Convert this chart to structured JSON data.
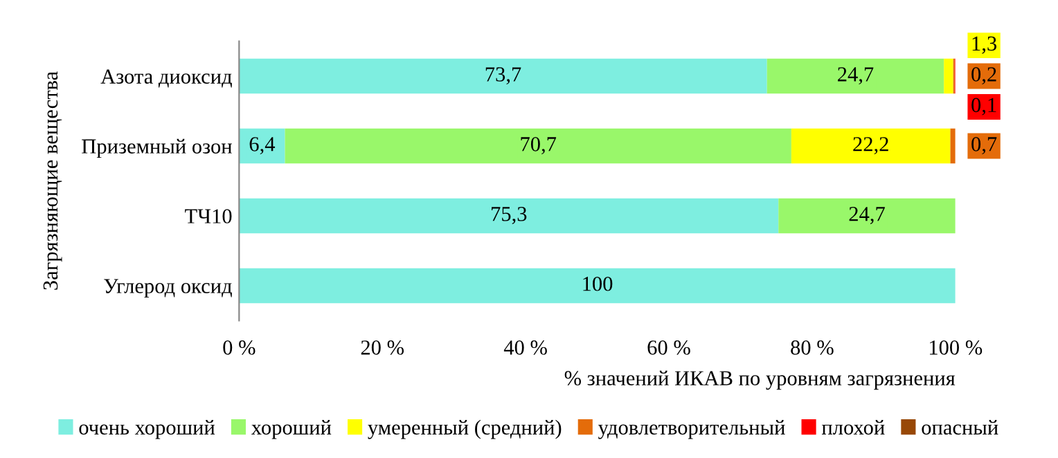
{
  "chart_data": {
    "type": "bar",
    "orientation": "horizontal",
    "stacked": true,
    "xlabel": "% значений ИКАВ по уровням загрязнения",
    "ylabel": "Загрязняющие вещества",
    "categories": [
      "Азота диоксид",
      "Приземный озон",
      "ТЧ10",
      "Углерод оксид"
    ],
    "series": [
      {
        "name": "очень хороший",
        "color": "#7eeee0",
        "values": [
          73.7,
          6.4,
          75.3,
          100
        ],
        "value_labels": [
          "73,7",
          "6,4",
          "75,3",
          "100"
        ]
      },
      {
        "name": "хороший",
        "color": "#99f76a",
        "values": [
          24.7,
          70.7,
          24.7,
          null
        ],
        "value_labels": [
          "24,7",
          "70,7",
          "24,7",
          null
        ]
      },
      {
        "name": "умеренный (средний)",
        "color": "#ffff00",
        "values": [
          1.3,
          22.2,
          null,
          null
        ],
        "value_labels": [
          "1,3",
          "22,2",
          null,
          null
        ]
      },
      {
        "name": "удовлетворительный",
        "color": "#e46c0a",
        "values": [
          0.2,
          0.7,
          null,
          null
        ],
        "value_labels": [
          "0,2",
          "0,7",
          null,
          null
        ]
      },
      {
        "name": "плохой",
        "color": "#ff0000",
        "values": [
          0.1,
          null,
          null,
          null
        ],
        "value_labels": [
          "0,1",
          null,
          null,
          null
        ]
      },
      {
        "name": "опасный",
        "color": "#984807",
        "values": [
          null,
          null,
          null,
          null
        ]
      }
    ],
    "xlim": [
      0,
      100
    ],
    "xticks": [
      {
        "value": 0,
        "label": "0 %"
      },
      {
        "value": 20,
        "label": "20 %"
      },
      {
        "value": 40,
        "label": "40 %"
      },
      {
        "value": 60,
        "label": "60 %"
      },
      {
        "value": 80,
        "label": "80 %"
      },
      {
        "value": 100,
        "label": "100 %"
      }
    ],
    "grid": false,
    "legend": "bottom"
  }
}
